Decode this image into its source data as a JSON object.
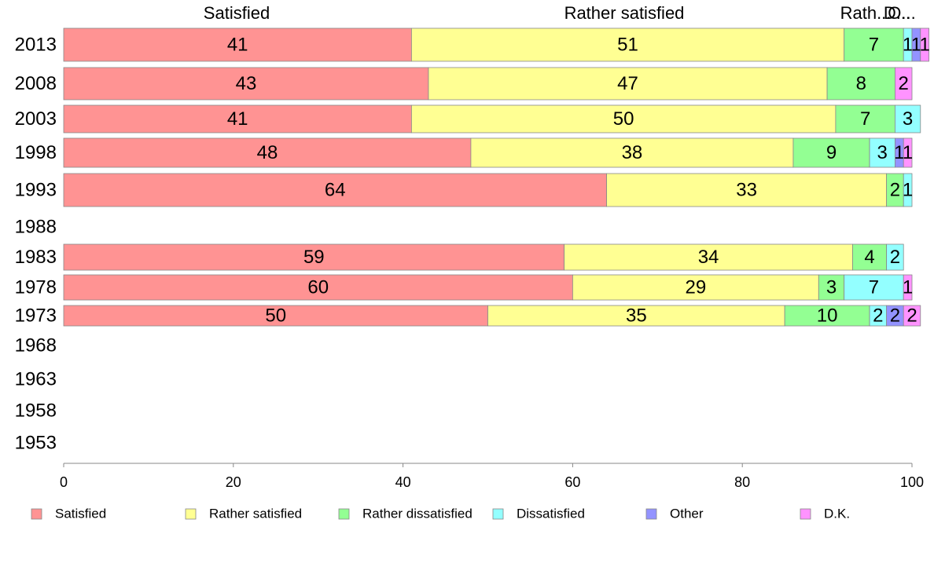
{
  "chart_data": {
    "type": "bar",
    "orientation": "horizontal",
    "stacked": true,
    "xlim": [
      0,
      100
    ],
    "x_ticks": [
      "0",
      "20",
      "40",
      "60",
      "80",
      "100"
    ],
    "categories": [
      "2013",
      "2008",
      "2003",
      "1998",
      "1993",
      "1988",
      "1983",
      "1978",
      "1973",
      "1968",
      "1963",
      "1958",
      "1953"
    ],
    "top_labels": [
      "Satisfied",
      "Rather satisfied",
      "Rath...",
      "D...",
      "O..."
    ],
    "series": [
      {
        "name": "Satisfied",
        "color": "#ff9393",
        "values": [
          41,
          43,
          41,
          48,
          64,
          null,
          59,
          60,
          50,
          null,
          null,
          null,
          null
        ]
      },
      {
        "name": "Rather satisfied",
        "color": "#ffff93",
        "values": [
          51,
          47,
          50,
          38,
          33,
          null,
          34,
          29,
          35,
          null,
          null,
          null,
          null
        ]
      },
      {
        "name": "Rather dissatisfied",
        "color": "#93ff93",
        "values": [
          7,
          8,
          7,
          9,
          2,
          null,
          4,
          3,
          10,
          null,
          null,
          null,
          null
        ]
      },
      {
        "name": "Dissatisfied",
        "color": "#93ffff",
        "values": [
          1,
          0,
          3,
          3,
          1,
          null,
          2,
          7,
          2,
          null,
          null,
          null,
          null
        ]
      },
      {
        "name": "Other",
        "color": "#9393ff",
        "values": [
          1,
          0,
          0,
          1,
          0,
          null,
          0,
          0,
          2,
          null,
          null,
          null,
          null
        ]
      },
      {
        "name": "D.K.",
        "color": "#ff93ff",
        "values": [
          1,
          2,
          0,
          1,
          0,
          null,
          0,
          1,
          2,
          null,
          null,
          null,
          null
        ]
      }
    ],
    "legend_position": "bottom",
    "grid": false
  }
}
